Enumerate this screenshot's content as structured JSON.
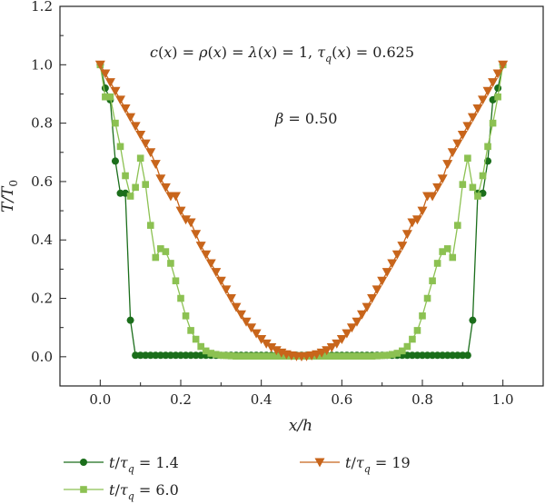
{
  "chart_data": {
    "type": "line",
    "xlabel": "x/h",
    "ylabel": "T/T₀",
    "xlim": [
      -0.1,
      1.1
    ],
    "ylim": [
      -0.1,
      1.2
    ],
    "xticks": [
      0.0,
      0.2,
      0.4,
      0.6,
      0.8,
      1.0
    ],
    "xtick_labels": [
      "0.0",
      "0.2",
      "0.4",
      "0.6",
      "0.8",
      "1.0"
    ],
    "yticks": [
      0.0,
      0.2,
      0.4,
      0.6,
      0.8,
      1.0,
      1.2
    ],
    "ytick_labels": [
      "0.0",
      "0.2",
      "0.4",
      "0.6",
      "0.8",
      "1.0",
      "1.2"
    ],
    "grid": false,
    "legend_position": "bottom",
    "annotations": [
      "c(x) = ρ(x) = λ(x) = 1, τq(x) = 0.625",
      "β = 0.50"
    ],
    "series": [
      {
        "name": "t/τq = 1.4",
        "color": "#1b6e1b",
        "marker": "circle",
        "x": [
          0.0,
          0.0125,
          0.025,
          0.0375,
          0.05,
          0.0625,
          0.075,
          0.0875,
          0.1,
          0.1125,
          0.125,
          0.1375,
          0.15,
          0.1625,
          0.175,
          0.1875,
          0.2,
          0.2125,
          0.225,
          0.2375,
          0.25,
          0.2625,
          0.275,
          0.2875,
          0.3,
          0.3125,
          0.325,
          0.3375,
          0.35,
          0.3625,
          0.375,
          0.3875,
          0.4,
          0.4125,
          0.425,
          0.4375,
          0.45,
          0.4625,
          0.475,
          0.4875,
          0.5,
          0.5125,
          0.525,
          0.5375,
          0.55,
          0.5625,
          0.575,
          0.5875,
          0.6,
          0.6125,
          0.625,
          0.6375,
          0.65,
          0.6625,
          0.675,
          0.6875,
          0.7,
          0.7125,
          0.725,
          0.7375,
          0.75,
          0.7625,
          0.775,
          0.7875,
          0.8,
          0.8125,
          0.825,
          0.8375,
          0.85,
          0.8625,
          0.875,
          0.8875,
          0.9,
          0.9125,
          0.925,
          0.9375,
          0.95,
          0.9625,
          0.975,
          0.9875,
          1.0
        ],
        "y": [
          1.0,
          0.92,
          0.88,
          0.67,
          0.56,
          0.56,
          0.125,
          0.005,
          0.005,
          0.005,
          0.005,
          0.005,
          0.005,
          0.005,
          0.005,
          0.005,
          0.005,
          0.005,
          0.005,
          0.005,
          0.005,
          0.005,
          0.005,
          0.005,
          0.005,
          0.005,
          0.005,
          0.005,
          0.005,
          0.005,
          0.005,
          0.005,
          0.005,
          0.005,
          0.005,
          0.005,
          0.005,
          0.005,
          0.005,
          0.005,
          0.005,
          0.005,
          0.005,
          0.005,
          0.005,
          0.005,
          0.005,
          0.005,
          0.005,
          0.005,
          0.005,
          0.005,
          0.005,
          0.005,
          0.005,
          0.005,
          0.005,
          0.005,
          0.005,
          0.005,
          0.005,
          0.005,
          0.005,
          0.005,
          0.005,
          0.005,
          0.005,
          0.005,
          0.005,
          0.005,
          0.005,
          0.005,
          0.005,
          0.005,
          0.125,
          0.56,
          0.56,
          0.67,
          0.88,
          0.92,
          1.0
        ]
      },
      {
        "name": "t/τq = 6.0",
        "color": "#8cc152",
        "marker": "square",
        "x": [
          0.0,
          0.0125,
          0.025,
          0.0375,
          0.05,
          0.0625,
          0.075,
          0.0875,
          0.1,
          0.1125,
          0.125,
          0.1375,
          0.15,
          0.1625,
          0.175,
          0.1875,
          0.2,
          0.2125,
          0.225,
          0.2375,
          0.25,
          0.2625,
          0.275,
          0.2875,
          0.3,
          0.3125,
          0.325,
          0.3375,
          0.35,
          0.3625,
          0.375,
          0.3875,
          0.4,
          0.4125,
          0.425,
          0.4375,
          0.45,
          0.4625,
          0.475,
          0.4875,
          0.5,
          0.5125,
          0.525,
          0.5375,
          0.55,
          0.5625,
          0.575,
          0.5875,
          0.6,
          0.6125,
          0.625,
          0.6375,
          0.65,
          0.6625,
          0.675,
          0.6875,
          0.7,
          0.7125,
          0.725,
          0.7375,
          0.75,
          0.7625,
          0.775,
          0.7875,
          0.8,
          0.8125,
          0.825,
          0.8375,
          0.85,
          0.8625,
          0.875,
          0.8875,
          0.9,
          0.9125,
          0.925,
          0.9375,
          0.95,
          0.9625,
          0.975,
          0.9875,
          1.0
        ],
        "y": [
          1.0,
          0.89,
          0.89,
          0.8,
          0.72,
          0.62,
          0.55,
          0.58,
          0.68,
          0.59,
          0.45,
          0.34,
          0.37,
          0.36,
          0.32,
          0.26,
          0.2,
          0.14,
          0.09,
          0.06,
          0.035,
          0.02,
          0.012,
          0.008,
          0.005,
          0.004,
          0.003,
          0.002,
          0.002,
          0.002,
          0.002,
          0.002,
          0.002,
          0.002,
          0.002,
          0.002,
          0.002,
          0.002,
          0.002,
          0.002,
          0.002,
          0.002,
          0.002,
          0.002,
          0.002,
          0.002,
          0.002,
          0.002,
          0.002,
          0.002,
          0.002,
          0.002,
          0.002,
          0.002,
          0.002,
          0.003,
          0.004,
          0.005,
          0.008,
          0.012,
          0.02,
          0.035,
          0.06,
          0.09,
          0.14,
          0.2,
          0.26,
          0.32,
          0.36,
          0.37,
          0.34,
          0.45,
          0.59,
          0.68,
          0.58,
          0.55,
          0.62,
          0.72,
          0.8,
          0.89,
          1.0
        ]
      },
      {
        "name": "t/τq = 19",
        "color": "#c8651b",
        "marker": "triangle-down",
        "x": [
          0.0,
          0.0125,
          0.025,
          0.0375,
          0.05,
          0.0625,
          0.075,
          0.0875,
          0.1,
          0.1125,
          0.125,
          0.1375,
          0.15,
          0.1625,
          0.175,
          0.1875,
          0.2,
          0.2125,
          0.225,
          0.2375,
          0.25,
          0.2625,
          0.275,
          0.2875,
          0.3,
          0.3125,
          0.325,
          0.3375,
          0.35,
          0.3625,
          0.375,
          0.3875,
          0.4,
          0.4125,
          0.425,
          0.4375,
          0.45,
          0.4625,
          0.475,
          0.4875,
          0.5,
          0.5125,
          0.525,
          0.5375,
          0.55,
          0.5625,
          0.575,
          0.5875,
          0.6,
          0.6125,
          0.625,
          0.6375,
          0.65,
          0.6625,
          0.675,
          0.6875,
          0.7,
          0.7125,
          0.725,
          0.7375,
          0.75,
          0.7625,
          0.775,
          0.7875,
          0.8,
          0.8125,
          0.825,
          0.8375,
          0.85,
          0.8625,
          0.875,
          0.8875,
          0.9,
          0.9125,
          0.925,
          0.9375,
          0.95,
          0.9625,
          0.975,
          0.9875,
          1.0
        ],
        "y": [
          1.0,
          0.97,
          0.94,
          0.91,
          0.88,
          0.85,
          0.82,
          0.79,
          0.76,
          0.73,
          0.7,
          0.66,
          0.61,
          0.58,
          0.55,
          0.55,
          0.5,
          0.47,
          0.46,
          0.42,
          0.38,
          0.35,
          0.32,
          0.29,
          0.26,
          0.23,
          0.2,
          0.17,
          0.145,
          0.12,
          0.1,
          0.08,
          0.06,
          0.045,
          0.032,
          0.022,
          0.014,
          0.008,
          0.004,
          0.002,
          0.001,
          0.002,
          0.004,
          0.008,
          0.014,
          0.022,
          0.032,
          0.045,
          0.06,
          0.08,
          0.1,
          0.12,
          0.145,
          0.17,
          0.2,
          0.23,
          0.26,
          0.29,
          0.32,
          0.35,
          0.38,
          0.42,
          0.46,
          0.47,
          0.5,
          0.55,
          0.55,
          0.58,
          0.61,
          0.66,
          0.7,
          0.73,
          0.76,
          0.79,
          0.82,
          0.85,
          0.88,
          0.91,
          0.94,
          0.97,
          1.0
        ]
      }
    ]
  }
}
